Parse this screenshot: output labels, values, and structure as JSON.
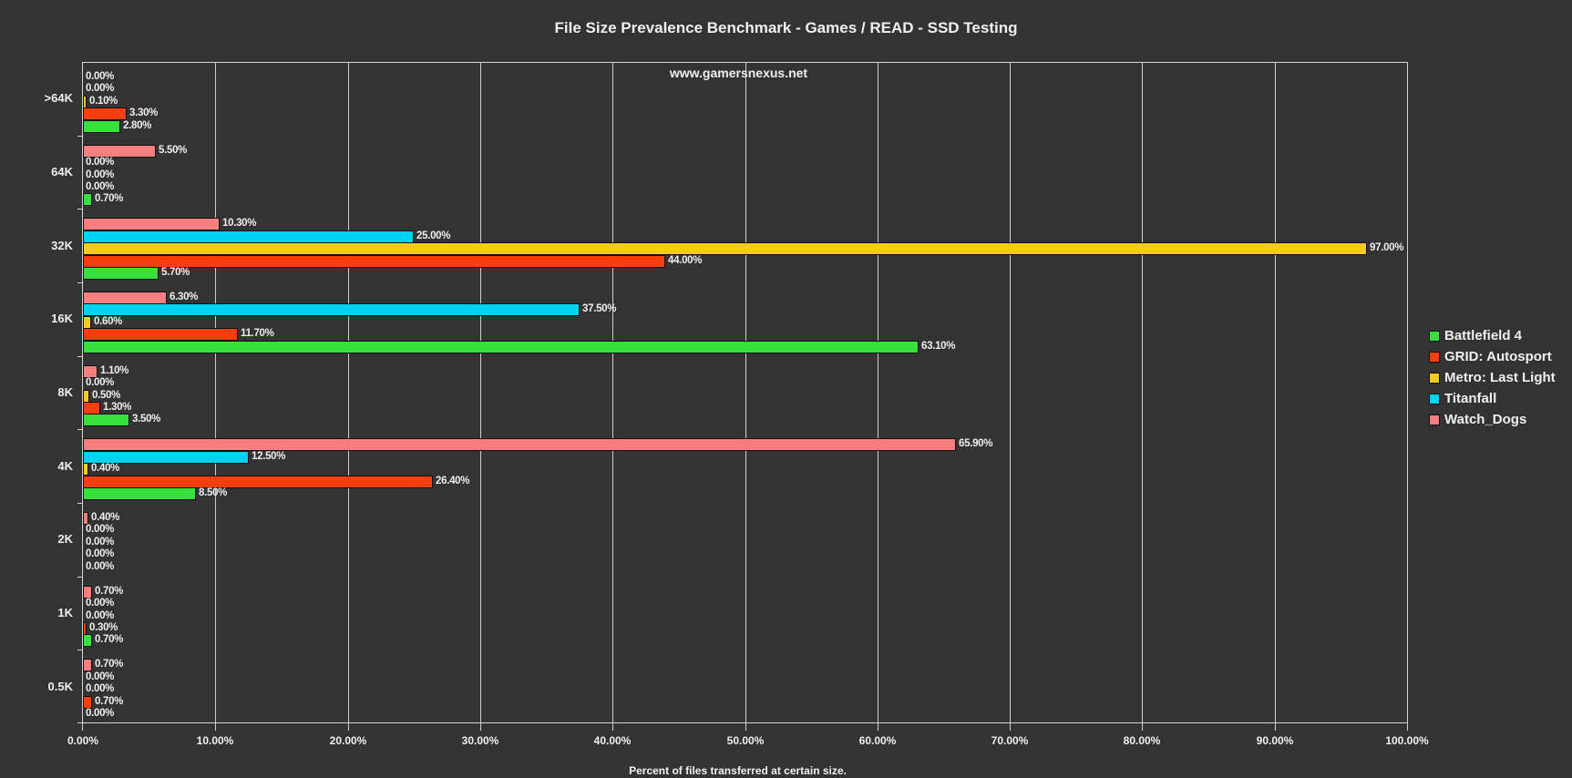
{
  "title": "File Size Prevalence Benchmark - Games / READ - SSD Testing",
  "watermark": "www.gamersnexus.net",
  "xlabel": "Percent of files transferred at certain size.",
  "chart_data": {
    "type": "bar",
    "orientation": "horizontal",
    "title": "File Size Prevalence Benchmark - Games / READ - SSD Testing",
    "xlabel": "Percent of files transferred at certain size.",
    "ylabel": "",
    "xlim": [
      0,
      100
    ],
    "x_ticks": [
      "0.00%",
      "10.00%",
      "20.00%",
      "30.00%",
      "40.00%",
      "50.00%",
      "60.00%",
      "70.00%",
      "80.00%",
      "90.00%",
      "100.00%"
    ],
    "grid": "vertical",
    "legend_position": "right",
    "categories": [
      ">64K",
      "64K",
      "32K",
      "16K",
      "8K",
      "4K",
      "2K",
      "1K",
      "0.5K"
    ],
    "series": [
      {
        "name": "Battlefield 4",
        "color": "#37e03c",
        "values": [
          2.8,
          0.7,
          5.7,
          63.1,
          3.5,
          8.5,
          0.0,
          0.7,
          0.0
        ]
      },
      {
        "name": "GRID: Autosport",
        "color": "#f73e0f",
        "values": [
          3.3,
          0.0,
          44.0,
          11.7,
          1.3,
          26.4,
          0.0,
          0.3,
          0.7
        ]
      },
      {
        "name": "Metro: Last Light",
        "color": "#f5cb21",
        "values": [
          0.1,
          0.0,
          97.0,
          0.6,
          0.5,
          0.4,
          0.0,
          0.0,
          0.0
        ]
      },
      {
        "name": "Titanfall",
        "color": "#00d2f3",
        "values": [
          0.0,
          0.0,
          25.0,
          37.5,
          0.0,
          12.5,
          0.0,
          0.0,
          0.0
        ]
      },
      {
        "name": "Watch_Dogs",
        "color": "#f77f80",
        "values": [
          0.0,
          5.5,
          10.3,
          6.3,
          1.1,
          65.9,
          0.4,
          0.7,
          0.7
        ]
      }
    ]
  },
  "legend": [
    {
      "label": "Battlefield 4",
      "color": "#37e03c"
    },
    {
      "label": "GRID: Autosport",
      "color": "#f73e0f"
    },
    {
      "label": "Metro: Last Light",
      "color": "#f5cb21"
    },
    {
      "label": "Titanfall",
      "color": "#00d2f3"
    },
    {
      "label": "Watch_Dogs",
      "color": "#f77f80"
    }
  ]
}
